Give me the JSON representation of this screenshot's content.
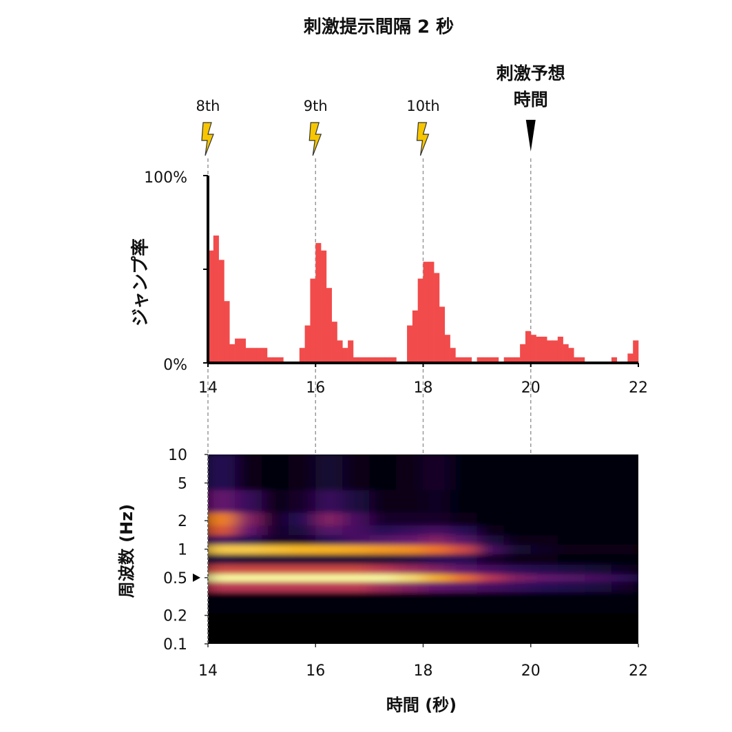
{
  "title": "刺激提示間隔 2 秒",
  "chart_data": [
    {
      "type": "histogram",
      "ylabel": "ジャンプ率",
      "color": "#f24b4b",
      "bins": [
        14,
        14.1,
        14.2,
        14.3,
        14.4,
        14.5,
        14.6,
        14.7,
        14.8,
        14.9,
        15,
        15.1,
        15.2,
        15.3,
        15.4,
        15.5,
        15.6,
        15.7,
        15.8,
        15.9,
        16,
        16.1,
        16.2,
        16.3,
        16.4,
        16.5,
        16.6,
        16.7,
        16.8,
        16.9,
        17,
        17.1,
        17.2,
        17.3,
        17.4,
        17.5,
        17.6,
        17.7,
        17.8,
        17.9,
        18,
        18.1,
        18.2,
        18.3,
        18.4,
        18.5,
        18.6,
        18.7,
        18.8,
        18.9,
        19,
        19.1,
        19.2,
        19.3,
        19.4,
        19.5,
        19.6,
        19.7,
        19.8,
        19.9,
        20,
        20.1,
        20.2,
        20.3,
        20.4,
        20.5,
        20.6,
        20.7,
        20.8,
        20.9,
        21,
        21.1,
        21.2,
        21.3,
        21.4,
        21.5,
        21.6,
        21.7,
        21.8,
        21.9,
        22
      ],
      "values": [
        60,
        68,
        55,
        33,
        10,
        13,
        13,
        8,
        8,
        8,
        8,
        3,
        3,
        3,
        0,
        0,
        0,
        8,
        20,
        45,
        64,
        60,
        40,
        22,
        12,
        8,
        12,
        3,
        3,
        3,
        3,
        3,
        3,
        3,
        3,
        0,
        0,
        20,
        28,
        45,
        54,
        54,
        48,
        30,
        15,
        8,
        3,
        3,
        3,
        0,
        3,
        3,
        3,
        3,
        0,
        3,
        3,
        3,
        10,
        17,
        15,
        14,
        14,
        12,
        12,
        14,
        10,
        8,
        3,
        3,
        0,
        0,
        0,
        0,
        0,
        3,
        0,
        0,
        5,
        12
      ],
      "xlim": [
        14,
        22
      ],
      "xticks": [
        14,
        16,
        18,
        20,
        22
      ],
      "ylim": [
        0,
        100
      ],
      "yticks": [
        {
          "value": 0,
          "label": "0%"
        },
        {
          "value": 100,
          "label": "100%"
        }
      ],
      "minor_yticks": [
        50
      ],
      "annotations": [
        {
          "x": 14,
          "label": "8th",
          "icon": "lightning"
        },
        {
          "x": 16,
          "label": "9th",
          "icon": "lightning"
        },
        {
          "x": 18,
          "label": "10th",
          "icon": "lightning"
        },
        {
          "x": 20,
          "label": [
            "刺激予想",
            "時間"
          ],
          "icon": "triangle"
        }
      ]
    },
    {
      "type": "heatmap",
      "xlabel": "時間 (秒)",
      "ylabel": "周波数 (Hz)",
      "colormap": "inferno",
      "ylog": true,
      "x": [
        14.25,
        14.75,
        15.25,
        15.75,
        16.25,
        16.75,
        17.25,
        17.75,
        18.25,
        18.75,
        19.25,
        19.75,
        20.25,
        20.75,
        21.25,
        21.75
      ],
      "y": [
        0.15,
        0.3,
        0.42,
        0.5,
        0.6,
        0.8,
        1,
        1.25,
        1.6,
        2,
        3,
        6
      ],
      "z": [
        [
          0,
          0,
          0,
          0,
          0,
          0,
          0,
          0,
          0,
          0,
          0,
          0,
          0,
          0,
          0,
          0
        ],
        [
          0.02,
          0.02,
          0.02,
          0.02,
          0.02,
          0.02,
          0.02,
          0.02,
          0.02,
          0.02,
          0.02,
          0.02,
          0.02,
          0.02,
          0.02,
          0.02
        ],
        [
          0.55,
          0.55,
          0.55,
          0.55,
          0.55,
          0.55,
          0.5,
          0.45,
          0.4,
          0.35,
          0.3,
          0.25,
          0.2,
          0.18,
          0.15,
          0.1
        ],
        [
          1,
          1,
          1,
          1,
          1,
          1,
          1,
          0.95,
          0.85,
          0.72,
          0.55,
          0.45,
          0.4,
          0.35,
          0.3,
          0.22
        ],
        [
          0.6,
          0.6,
          0.6,
          0.6,
          0.6,
          0.6,
          0.55,
          0.5,
          0.45,
          0.38,
          0.3,
          0.22,
          0.18,
          0.15,
          0.12,
          0.08
        ],
        [
          0.15,
          0.12,
          0.12,
          0.12,
          0.12,
          0.12,
          0.12,
          0.15,
          0.2,
          0.2,
          0.1,
          0.05,
          0.04,
          0.03,
          0.02,
          0.02
        ],
        [
          0.9,
          0.9,
          0.88,
          0.86,
          0.85,
          0.83,
          0.8,
          0.78,
          0.72,
          0.6,
          0.3,
          0.12,
          0.08,
          0.05,
          0.05,
          0.05
        ],
        [
          0.3,
          0.2,
          0.1,
          0.1,
          0.2,
          0.3,
          0.35,
          0.4,
          0.45,
          0.35,
          0.15,
          0.05,
          0.04,
          0.03,
          0.03,
          0.03
        ],
        [
          0.65,
          0.4,
          0.1,
          0.15,
          0.35,
          0.3,
          0.2,
          0.25,
          0.3,
          0.2,
          0.05,
          0.03,
          0.02,
          0.02,
          0.02,
          0.02
        ],
        [
          0.75,
          0.45,
          0.1,
          0.2,
          0.45,
          0.3,
          0.1,
          0.1,
          0.1,
          0.05,
          0.03,
          0.02,
          0.02,
          0.02,
          0.02,
          0.02
        ],
        [
          0.4,
          0.25,
          0.05,
          0.1,
          0.25,
          0.15,
          0.05,
          0.05,
          0.08,
          0.03,
          0.02,
          0.02,
          0.02,
          0.02,
          0.02,
          0.02
        ],
        [
          0.2,
          0.05,
          0.02,
          0.05,
          0.12,
          0.05,
          0.02,
          0.05,
          0.1,
          0.02,
          0.02,
          0.02,
          0.02,
          0.02,
          0.02,
          0.02
        ]
      ],
      "xlim": [
        14,
        22
      ],
      "xticks": [
        14,
        16,
        18,
        20,
        22
      ],
      "ylim": [
        0.1,
        10
      ],
      "yticks": [
        0.1,
        0.2,
        0.5,
        1,
        2,
        5,
        10
      ],
      "marker_y": 0.5
    }
  ]
}
